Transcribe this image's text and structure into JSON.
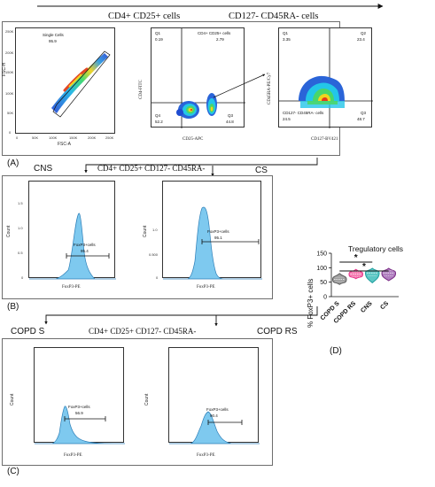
{
  "header": {
    "cd4_cd25": "CD4+ CD25+ cells",
    "cd127_cd45ra": "CD127- CD45RA- cells"
  },
  "panelA": {
    "label": "(A)",
    "plot1": {
      "gate_name": "Single Cells",
      "gate_value": "95.9",
      "ylabel": "FSC-H",
      "xlabel": "FSC-A",
      "xticks": [
        "0",
        "50K",
        "100K",
        "150K",
        "200K",
        "250K"
      ],
      "yticks": [
        "0",
        "50K",
        "100K",
        "150K",
        "200K",
        "250K"
      ]
    },
    "plot2": {
      "q1_name": "Q1",
      "q1_value": "0.19",
      "q2_name": "CD4+ CD25+ cells",
      "q2_value": "2.79",
      "q3_name": "Q3",
      "q3_value": "44.8",
      "q4_name": "Q4",
      "q4_value": "52.2",
      "ylabel": "CD4-FITC",
      "xlabel": "CD25-APC"
    },
    "plot3": {
      "q1_name": "Q1",
      "q1_value": "3.35",
      "q2_name": "Q2",
      "q2_value": "23.4",
      "q3_name": "Q3",
      "q3_value": "48.7",
      "q4_name": "CD127- CD45RA- cells",
      "q4_value": "24.5",
      "ylabel": "CD45RA-PE/Cy7",
      "xlabel": "CD127-BV421"
    }
  },
  "panelB": {
    "label": "(B)",
    "left_label": "CNS",
    "center_label": "CD4+ CD25+ CD127- CD45RA-",
    "right_label": "CS",
    "hist1": {
      "gate_name": "FoxP3+cells",
      "gate_value": "95.4",
      "xlabel": "FoxP3-PE",
      "ylabel": "Count",
      "yticks": [
        "0",
        "0.5",
        "1.0",
        "1.5"
      ]
    },
    "hist2": {
      "gate_name": "FoxP3+cells",
      "gate_value": "95.1",
      "xlabel": "FoxP3-PE",
      "ylabel": "Count",
      "yticks": [
        "0",
        "0.500",
        "1.0"
      ]
    }
  },
  "panelC": {
    "label": "(C)",
    "left_label": "COPD S",
    "center_label": "CD4+ CD25+ CD127- CD45RA-",
    "right_label": "COPD RS",
    "hist1": {
      "gate_name": "FoxP3+cells",
      "gate_value": "56.9",
      "xlabel": "FoxP3-PE",
      "ylabel": "Count"
    },
    "hist2": {
      "gate_name": "FoxP3+cells",
      "gate_value": "90.4",
      "xlabel": "FoxP3-PE",
      "ylabel": "Count"
    }
  },
  "panelD": {
    "label": "(D)",
    "chart_data": {
      "type": "violin",
      "title": "Tregulatory cells",
      "ylabel": "% FoxP3+ cells",
      "ylim": [
        0,
        150
      ],
      "yticks": [
        0,
        50,
        100,
        150
      ],
      "categories": [
        "COPD S",
        "COPD RS",
        "CNS",
        "CS"
      ],
      "colors": [
        "#5a5a5a",
        "#e8368c",
        "#1e9e9e",
        "#7b2c86"
      ],
      "fills": [
        "#9e9e9e",
        "#f57ab0",
        "#5cc7c4",
        "#b07fc0"
      ],
      "series": [
        {
          "category": "COPD S",
          "min": 42,
          "q1": 52,
          "median": 60,
          "q3": 67,
          "max": 80
        },
        {
          "category": "COPD RS",
          "min": 62,
          "q1": 70,
          "median": 78,
          "q3": 86,
          "max": 94
        },
        {
          "category": "CNS",
          "min": 48,
          "q1": 72,
          "median": 82,
          "q3": 90,
          "max": 98
        },
        {
          "category": "CS",
          "min": 55,
          "q1": 72,
          "median": 82,
          "q3": 90,
          "max": 98
        }
      ],
      "significance": [
        {
          "from": "COPD S",
          "to": "CNS",
          "label": "*"
        },
        {
          "from": "COPD S",
          "to": "CS",
          "label": "*"
        }
      ]
    }
  }
}
